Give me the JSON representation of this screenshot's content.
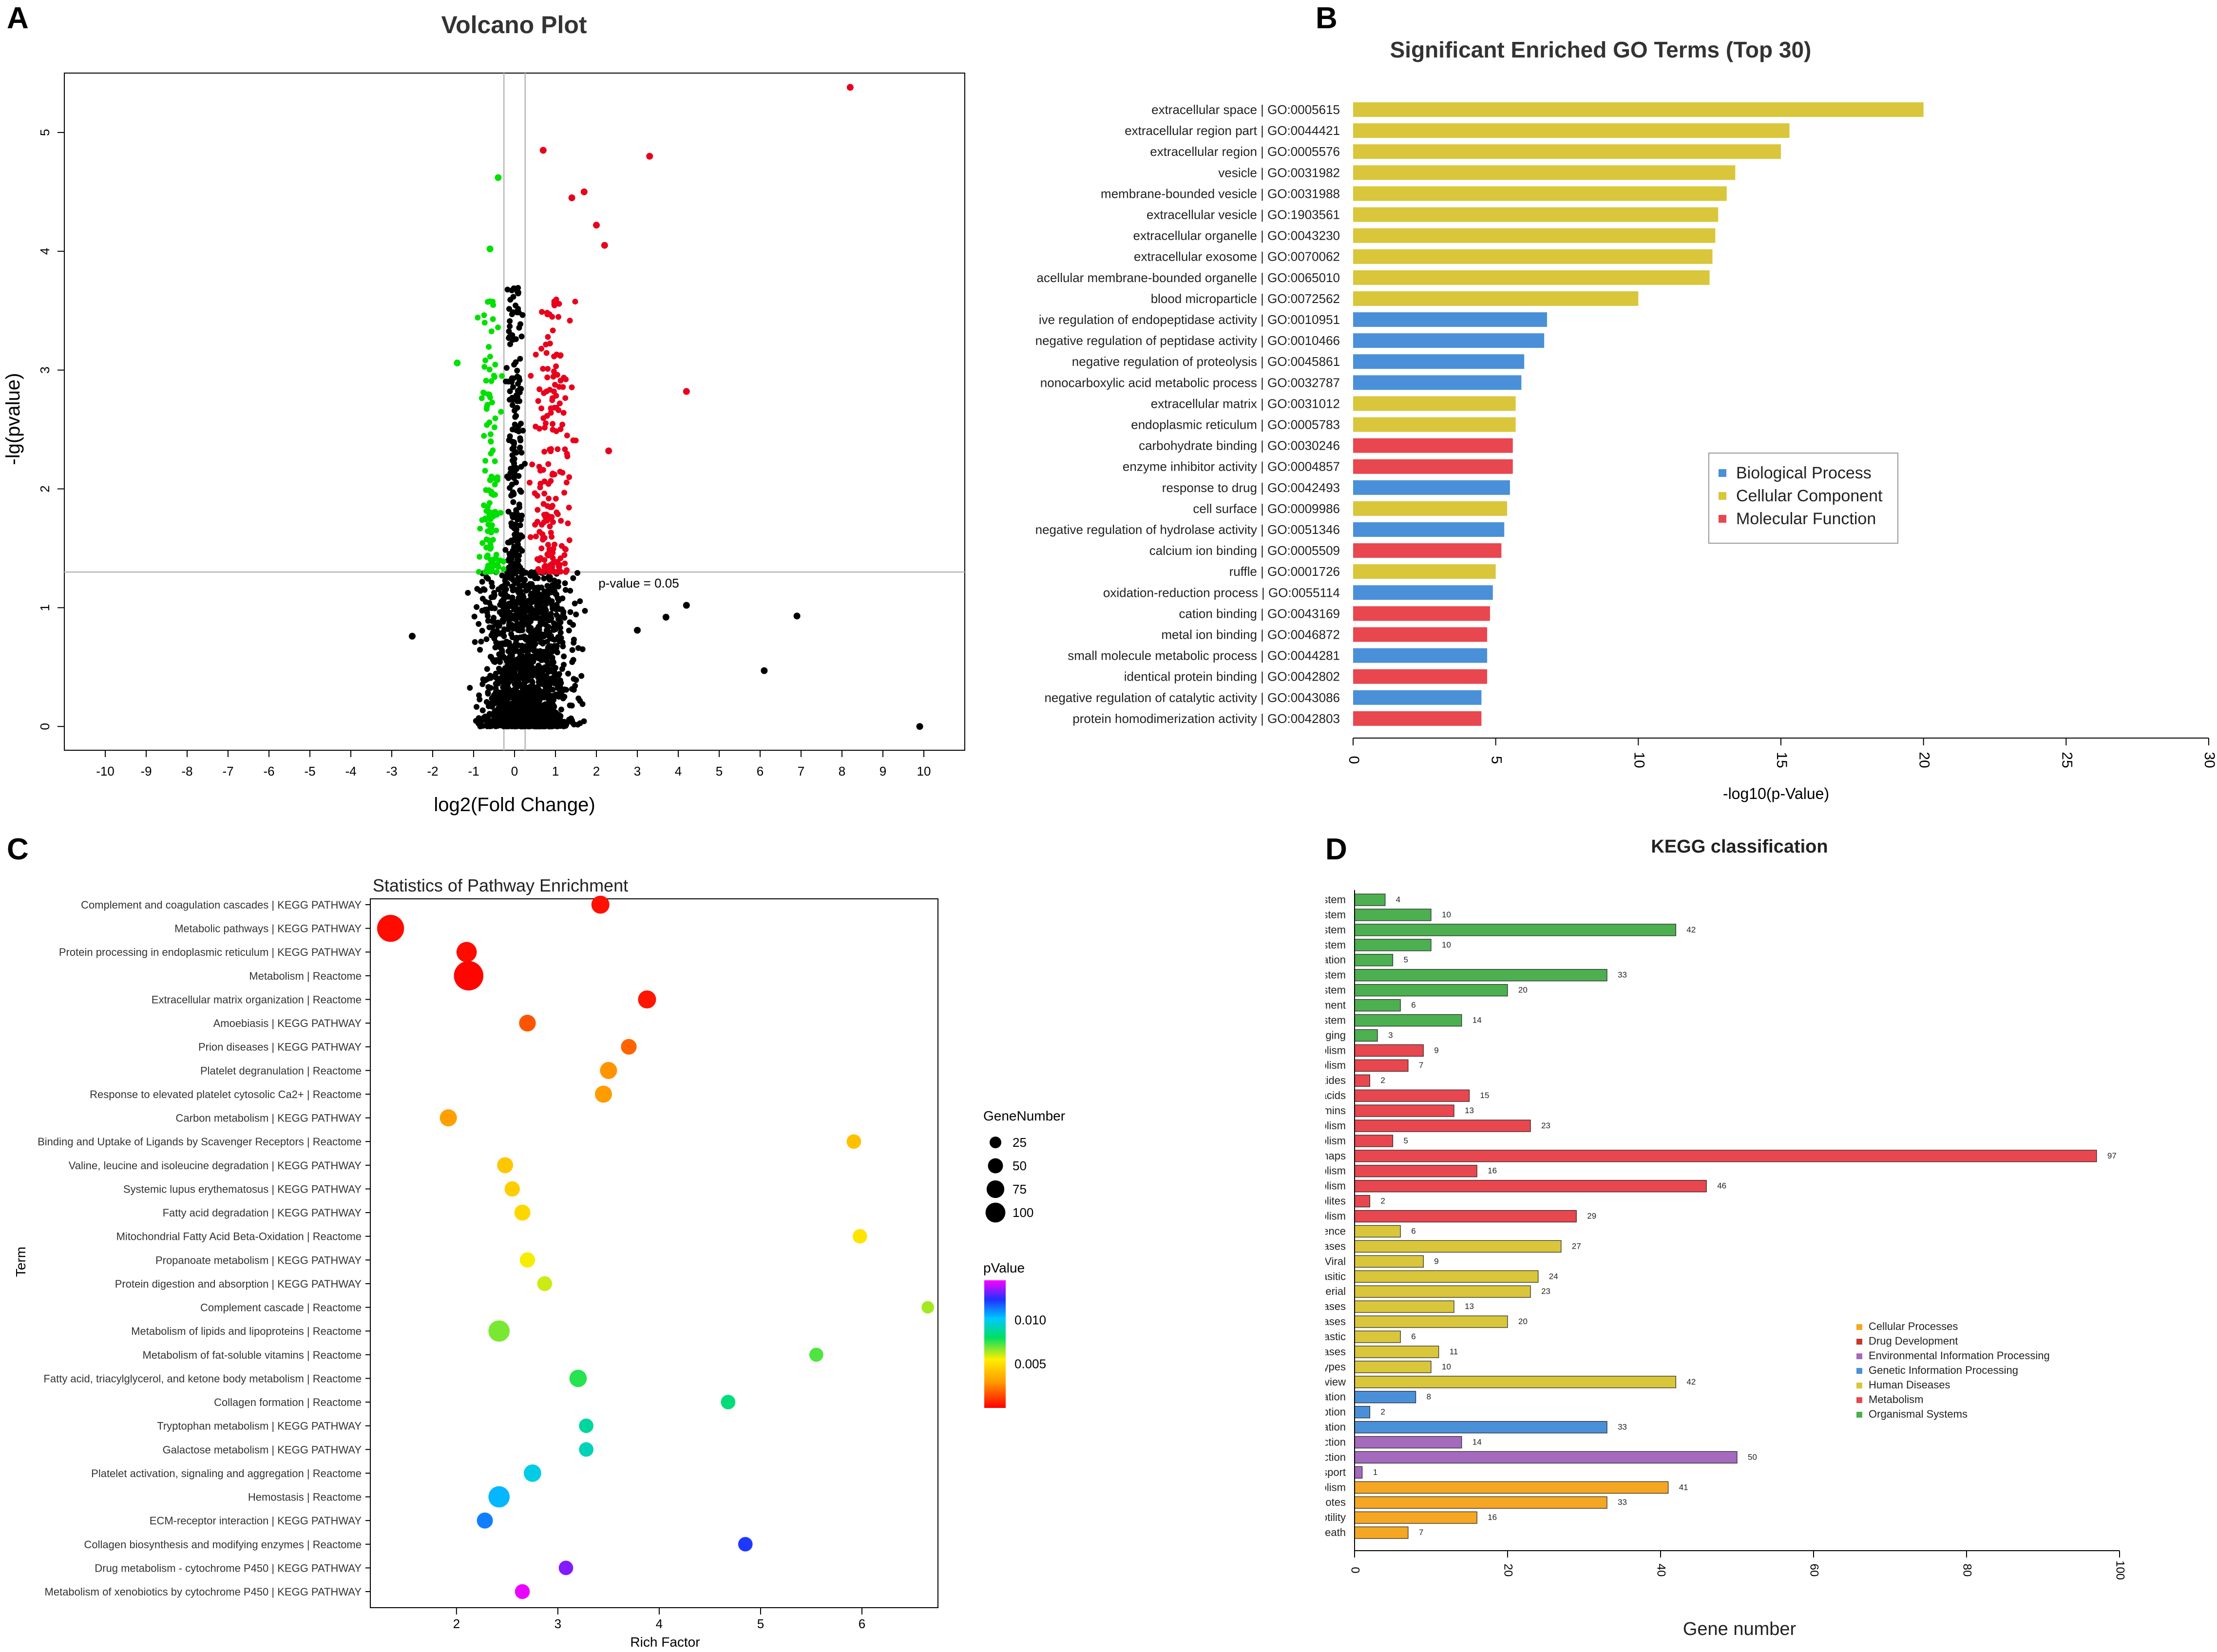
{
  "panels": {
    "A": {
      "letter": "A",
      "chart_data": {
        "type": "scatter",
        "title": "Volcano Plot",
        "xlabel": "log2(Fold Change)",
        "ylabel": "-lg(pvalue)",
        "xlim": [
          -11,
          11
        ],
        "ylim": [
          -0.2,
          5.5
        ],
        "x_ticks": [
          -10,
          -9,
          -8,
          -7,
          -6,
          -5,
          -4,
          -3,
          -2,
          -1,
          0,
          1,
          2,
          3,
          4,
          5,
          6,
          7,
          8,
          9,
          10
        ],
        "y_ticks": [
          0,
          1,
          2,
          3,
          4,
          5
        ],
        "threshold_label": "p-value = 0.05",
        "threshold_y": 1.3,
        "vlines": [
          -0.26,
          0.26
        ],
        "colors": {
          "up": "#e8001c",
          "down": "#00e000",
          "ns": "#000000",
          "line": "#bfbfbf"
        },
        "labeled_points": [
          {
            "x": 8.2,
            "y": 5.38,
            "group": "up"
          },
          {
            "x": 0.7,
            "y": 4.85,
            "group": "up"
          },
          {
            "x": 3.3,
            "y": 4.8,
            "group": "up"
          },
          {
            "x": 1.4,
            "y": 4.45,
            "group": "up"
          },
          {
            "x": 1.7,
            "y": 4.5,
            "group": "up"
          },
          {
            "x": 2.0,
            "y": 4.22,
            "group": "up"
          },
          {
            "x": 2.2,
            "y": 4.05,
            "group": "up"
          },
          {
            "x": 4.2,
            "y": 2.82,
            "group": "up"
          },
          {
            "x": 2.3,
            "y": 2.32,
            "group": "up"
          },
          {
            "x": -0.4,
            "y": 4.62,
            "group": "down"
          },
          {
            "x": -0.6,
            "y": 4.02,
            "group": "down"
          },
          {
            "x": -1.4,
            "y": 3.06,
            "group": "down"
          },
          {
            "x": 9.9,
            "y": 0.0,
            "group": "ns"
          },
          {
            "x": 6.9,
            "y": 0.93,
            "group": "ns"
          },
          {
            "x": 6.1,
            "y": 0.47,
            "group": "ns"
          },
          {
            "x": 4.2,
            "y": 1.02,
            "group": "ns"
          },
          {
            "x": 3.7,
            "y": 0.92,
            "group": "ns"
          },
          {
            "x": 3.0,
            "y": 0.81,
            "group": "ns"
          },
          {
            "x": -2.5,
            "y": 0.76,
            "group": "ns"
          }
        ],
        "cloud": {
          "ns": {
            "count": 1400,
            "x_range": [
              -1.2,
              1.8
            ],
            "y_range": [
              0,
              1.3
            ]
          },
          "up": {
            "count": 190,
            "x_range": [
              0.26,
              1.5
            ],
            "y_range": [
              1.3,
              3.6
            ]
          },
          "down": {
            "count": 120,
            "x_range": [
              -0.9,
              -0.26
            ],
            "y_range": [
              1.3,
              3.6
            ]
          },
          "ns_upper": {
            "count": 220,
            "x_range": [
              -0.26,
              0.26
            ],
            "y_range": [
              1.3,
              3.7
            ]
          }
        }
      }
    },
    "B": {
      "letter": "B",
      "chart_data": {
        "type": "bar",
        "orientation": "horizontal",
        "title": "Significant Enriched GO Terms (Top 30)",
        "xlabel": "-log10(p-Value)",
        "xlim": [
          0,
          30
        ],
        "x_ticks": [
          0,
          5,
          10,
          15,
          20,
          25,
          30
        ],
        "legend": [
          {
            "name": "Biological Process",
            "color": "#4a90d9"
          },
          {
            "name": "Cellular Component",
            "color": "#d9c63a"
          },
          {
            "name": "Molecular Function",
            "color": "#e8474f"
          }
        ],
        "categories": [
          "extracellular space | GO:0005615",
          "extracellular region part | GO:0044421",
          "extracellular region | GO:0005576",
          "vesicle | GO:0031982",
          "membrane-bounded vesicle | GO:0031988",
          "extracellular vesicle | GO:1903561",
          "extracellular organelle | GO:0043230",
          "extracellular exosome | GO:0070062",
          "acellular membrane-bounded organelle | GO:0065010",
          "blood microparticle | GO:0072562",
          "ive regulation of endopeptidase activity | GO:0010951",
          "negative regulation of peptidase activity | GO:0010466",
          "negative regulation of proteolysis | GO:0045861",
          "nonocarboxylic acid metabolic process | GO:0032787",
          "extracellular matrix | GO:0031012",
          "endoplasmic reticulum | GO:0005783",
          "carbohydrate binding | GO:0030246",
          "enzyme inhibitor activity | GO:0004857",
          "response to drug | GO:0042493",
          "cell surface | GO:0009986",
          "negative regulation of hydrolase activity | GO:0051346",
          "calcium ion binding | GO:0005509",
          "ruffle | GO:0001726",
          "oxidation-reduction process | GO:0055114",
          "cation binding | GO:0043169",
          "metal ion binding | GO:0046872",
          "small molecule metabolic process | GO:0044281",
          "identical protein binding | GO:0042802",
          "negative regulation of catalytic activity | GO:0043086",
          "protein homodimerization activity | GO:0042803"
        ],
        "values": [
          20.0,
          15.3,
          15.0,
          13.4,
          13.1,
          12.8,
          12.7,
          12.6,
          12.5,
          10.0,
          6.8,
          6.7,
          6.0,
          5.9,
          5.7,
          5.7,
          5.6,
          5.6,
          5.5,
          5.4,
          5.3,
          5.2,
          5.0,
          4.9,
          4.8,
          4.7,
          4.7,
          4.7,
          4.5,
          4.5
        ],
        "groups": [
          "CC",
          "CC",
          "CC",
          "CC",
          "CC",
          "CC",
          "CC",
          "CC",
          "CC",
          "CC",
          "BP",
          "BP",
          "BP",
          "BP",
          "CC",
          "CC",
          "MF",
          "MF",
          "BP",
          "CC",
          "BP",
          "MF",
          "CC",
          "BP",
          "MF",
          "MF",
          "BP",
          "MF",
          "BP",
          "MF"
        ],
        "group_colors": {
          "BP": "#4a90d9",
          "CC": "#d9c63a",
          "MF": "#e8474f"
        }
      }
    },
    "C": {
      "letter": "C",
      "chart_data": {
        "type": "scatter",
        "title": "Statistics of Pathway Enrichment",
        "xlabel": "Rich Factor",
        "ylabel": "Term",
        "xlim": [
          1.15,
          6.75
        ],
        "x_ticks": [
          2,
          3,
          4,
          5,
          6
        ],
        "size_legend_title": "GeneNumber",
        "size_legend": [
          25,
          50,
          75,
          100
        ],
        "color_legend_title": "pValue",
        "color_legend_ticks": [
          {
            "label": "0.010",
            "value": 0.01
          },
          {
            "label": "0.005",
            "value": 0.005
          }
        ],
        "color_range": [
          0,
          0.0145
        ],
        "terms": [
          "Complement and coagulation cascades | KEGG PATHWAY",
          "Metabolic pathways | KEGG PATHWAY",
          "Protein processing in endoplasmic reticulum | KEGG PATHWAY",
          "Metabolism | Reactome",
          "Extracellular matrix organization | Reactome",
          "Amoebiasis | KEGG PATHWAY",
          "Prion diseases | KEGG PATHWAY",
          "Platelet degranulation  | Reactome",
          "Response to elevated platelet cytosolic Ca2+ | Reactome",
          "Carbon metabolism | KEGG PATHWAY",
          "Binding and Uptake of Ligands by Scavenger Receptors | Reactome",
          "Valine, leucine and isoleucine degradation | KEGG PATHWAY",
          "Systemic lupus erythematosus | KEGG PATHWAY",
          "Fatty acid degradation | KEGG PATHWAY",
          "Mitochondrial Fatty Acid Beta-Oxidation | Reactome",
          "Propanoate metabolism | KEGG PATHWAY",
          "Protein digestion and absorption | KEGG PATHWAY",
          "Complement cascade | Reactome",
          "Metabolism of lipids and lipoproteins | Reactome",
          "Metabolism of fat-soluble vitamins | Reactome",
          "Fatty acid, triacylglycerol, and ketone body metabolism | Reactome",
          "Collagen formation | Reactome",
          "Tryptophan metabolism | KEGG PATHWAY",
          "Galactose metabolism | KEGG PATHWAY",
          "Platelet activation, signaling and aggregation | Reactome",
          "Hemostasis | Reactome",
          "ECM-receptor interaction | KEGG PATHWAY",
          "Collagen biosynthesis and modifying enzymes | Reactome",
          "Drug metabolism - cytochrome P450 | KEGG PATHWAY",
          "Metabolism of xenobiotics by cytochrome P450 | KEGG PATHWAY"
        ],
        "rich_factor": [
          3.42,
          1.35,
          2.1,
          2.12,
          3.88,
          2.7,
          3.7,
          3.5,
          3.45,
          1.92,
          5.92,
          2.48,
          2.55,
          2.65,
          5.98,
          2.7,
          2.87,
          6.65,
          2.42,
          5.55,
          3.2,
          4.68,
          3.28,
          3.28,
          2.75,
          2.42,
          2.28,
          4.85,
          3.08,
          2.65
        ],
        "gene_number": [
          20,
          60,
          28,
          75,
          20,
          16,
          13,
          17,
          17,
          17,
          10,
          14,
          12,
          14,
          10,
          12,
          11,
          6,
          32,
          9,
          18,
          10,
          10,
          10,
          18,
          32,
          14,
          10,
          10,
          11
        ],
        "pvalue": [
          0.0003,
          0.0002,
          0.0002,
          0.0001,
          0.0004,
          0.0016,
          0.0019,
          0.0028,
          0.003,
          0.0031,
          0.0041,
          0.0043,
          0.0045,
          0.0048,
          0.0052,
          0.0056,
          0.006,
          0.0064,
          0.0068,
          0.0072,
          0.0076,
          0.0083,
          0.0088,
          0.0092,
          0.0098,
          0.0104,
          0.0112,
          0.0122,
          0.0133,
          0.0143
        ]
      }
    },
    "D": {
      "letter": "D",
      "chart_data": {
        "type": "bar",
        "orientation": "horizontal",
        "title": "KEGG classification",
        "xlabel": "Gene number",
        "xlim": [
          0,
          100
        ],
        "x_ticks": [
          0,
          20,
          40,
          60,
          80,
          100
        ],
        "legend": [
          {
            "name": "Cellular Processes",
            "color": "#f5a623"
          },
          {
            "name": "Drug Development",
            "color": "#c0392b"
          },
          {
            "name": "Environmental Information Processing",
            "color": "#a569bd"
          },
          {
            "name": "Genetic Information Processing",
            "color": "#4a90d9"
          },
          {
            "name": "Human Diseases",
            "color": "#d9c63a"
          },
          {
            "name": "Metabolism",
            "color": "#e8474f"
          },
          {
            "name": "Organismal Systems",
            "color": "#4caf50"
          }
        ],
        "categories": [
          "Sensory system",
          "Nervous system",
          "Immune system",
          "Excretory system",
          "Environmental adaptation",
          "Endocrine system",
          "Digestive system",
          "Development",
          "Circulatory system",
          "Aging",
          "Xenobiotics biodegradation and metabolism",
          "Nucleotide metabolism",
          "Metabolism of terpenoids and polyketides",
          "Metabolism of other amino acids",
          "Metabolism of cofactors and vitamins",
          "Lipid metabolism",
          "Glycan biosynthesis and metabolism",
          "Global and overview maps",
          "Energy metabolism",
          "Carbohydrate metabolism",
          "Biosynthesis of other secondary metabolites",
          "Amino acid metabolism",
          "Substance dependence",
          "Neurodegenerative diseases",
          "Infectious diseases: Viral",
          "Infectious diseases: Parasitic",
          "Infectious diseases: Bacterial",
          "Immune diseases",
          "Endocrine and metabolic diseases",
          "Drug resistance: Antineoplastic",
          "Cardiovascular diseases",
          "Cancers: Specific types",
          "Cancers: Overview",
          "Translation",
          "Transcription",
          "Folding, sorting and degradation",
          "Signaling molecules and interaction",
          "Signal transduction",
          "Membrane transport",
          "Transport and catabolism",
          "Cellular community - eukaryotes",
          "Cell motility",
          "Cell growth and death"
        ],
        "values": [
          4,
          10,
          42,
          10,
          5,
          33,
          20,
          6,
          14,
          3,
          9,
          7,
          2,
          15,
          13,
          23,
          5,
          97,
          16,
          46,
          2,
          29,
          6,
          27,
          9,
          24,
          23,
          13,
          20,
          6,
          11,
          10,
          42,
          8,
          2,
          33,
          14,
          50,
          1,
          41,
          33,
          16,
          7
        ],
        "colors": [
          "#4caf50",
          "#4caf50",
          "#4caf50",
          "#4caf50",
          "#4caf50",
          "#4caf50",
          "#4caf50",
          "#4caf50",
          "#4caf50",
          "#4caf50",
          "#e8474f",
          "#e8474f",
          "#e8474f",
          "#e8474f",
          "#e8474f",
          "#e8474f",
          "#e8474f",
          "#e8474f",
          "#e8474f",
          "#e8474f",
          "#e8474f",
          "#e8474f",
          "#d9c63a",
          "#d9c63a",
          "#d9c63a",
          "#d9c63a",
          "#d9c63a",
          "#d9c63a",
          "#d9c63a",
          "#d9c63a",
          "#d9c63a",
          "#d9c63a",
          "#d9c63a",
          "#4a90d9",
          "#4a90d9",
          "#4a90d9",
          "#a569bd",
          "#a569bd",
          "#a569bd",
          "#f5a623",
          "#f5a623",
          "#f5a623",
          "#f5a623"
        ]
      }
    }
  }
}
